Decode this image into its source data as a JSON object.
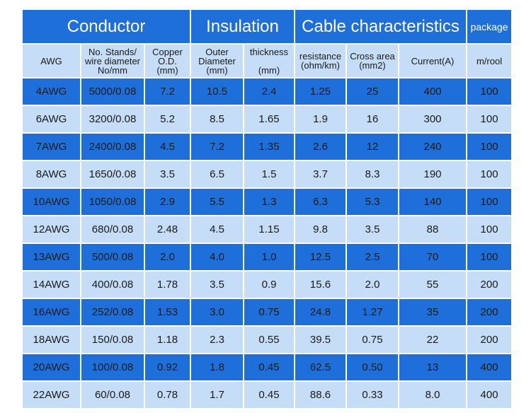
{
  "table": {
    "group_headers": [
      "Conductor",
      "Insulation",
      "Cable characteristics",
      "package"
    ],
    "column_headers": [
      "AWG",
      "No. Stands/\nwire diameter\nNo/mm",
      "Copper\nO.D.\n(mm)",
      "Outer\nDiameter\n(mm)",
      "thickness\n\n(mm)",
      "resistance\n(ohm/km)",
      "Cross area\n(mm2)",
      "Current(A)",
      "m/rool"
    ],
    "rows": [
      [
        "4AWG",
        "5000/0.08",
        "7.2",
        "10.5",
        "2.4",
        "1.25",
        "25",
        "400",
        "100"
      ],
      [
        "6AWG",
        "3200/0.08",
        "5.2",
        "8.5",
        "1.65",
        "1.9",
        "16",
        "300",
        "100"
      ],
      [
        "7AWG",
        "2400/0.08",
        "4.5",
        "7.2",
        "1.35",
        "2.6",
        "12",
        "240",
        "100"
      ],
      [
        "8AWG",
        "1650/0.08",
        "3.5",
        "6.5",
        "1.5",
        "3.7",
        "8.3",
        "190",
        "100"
      ],
      [
        "10AWG",
        "1050/0.08",
        "2.9",
        "5.5",
        "1.3",
        "6.3",
        "5.3",
        "140",
        "100"
      ],
      [
        "12AWG",
        "680/0.08",
        "2.48",
        "4.5",
        "1.15",
        "9.8",
        "3.5",
        "88",
        "100"
      ],
      [
        "13AWG",
        "500/0.08",
        "2.0",
        "4.0",
        "1.0",
        "12.5",
        "2.5",
        "70",
        "100"
      ],
      [
        "14AWG",
        "400/0.08",
        "1.78",
        "3.5",
        "0.9",
        "15.6",
        "2.0",
        "55",
        "200"
      ],
      [
        "16AWG",
        "252/0.08",
        "1.53",
        "3.0",
        "0.75",
        "24.8",
        "1.27",
        "35",
        "200"
      ],
      [
        "18AWG",
        "150/0.08",
        "1.18",
        "2.3",
        "0.55",
        "39.5",
        "0.75",
        "22",
        "200"
      ],
      [
        "20AWG",
        "100/0.08",
        "0.92",
        "1.8",
        "0.45",
        "62.5",
        "0.50",
        "13",
        "400"
      ],
      [
        "22AWG",
        "60/0.08",
        "0.78",
        "1.7",
        "0.45",
        "88.6",
        "0.33",
        "8.0",
        "400"
      ]
    ]
  }
}
